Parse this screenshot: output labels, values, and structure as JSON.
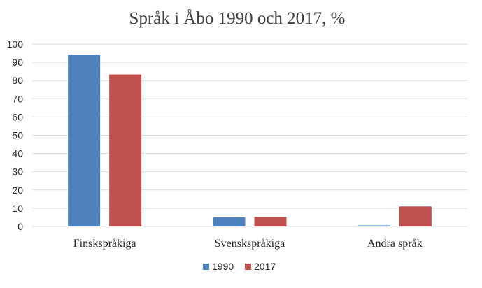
{
  "chart_data": {
    "type": "bar",
    "title": "Språk i Åbo 1990 och 2017, %",
    "xlabel": "",
    "ylabel": "",
    "categories": [
      "Finskspråkiga",
      "Svenskspråkiga",
      "Andra språk"
    ],
    "series": [
      {
        "name": "1990",
        "values": [
          94.1,
          5.0,
          0.6
        ],
        "color": "#4f81bd"
      },
      {
        "name": "2017",
        "values": [
          83.3,
          5.2,
          11.0
        ],
        "color": "#c0504d"
      }
    ],
    "ylim": [
      0,
      100
    ],
    "yticks": [
      0,
      10,
      20,
      30,
      40,
      50,
      60,
      70,
      80,
      90,
      100
    ],
    "grid": true,
    "legend_position": "bottom"
  }
}
